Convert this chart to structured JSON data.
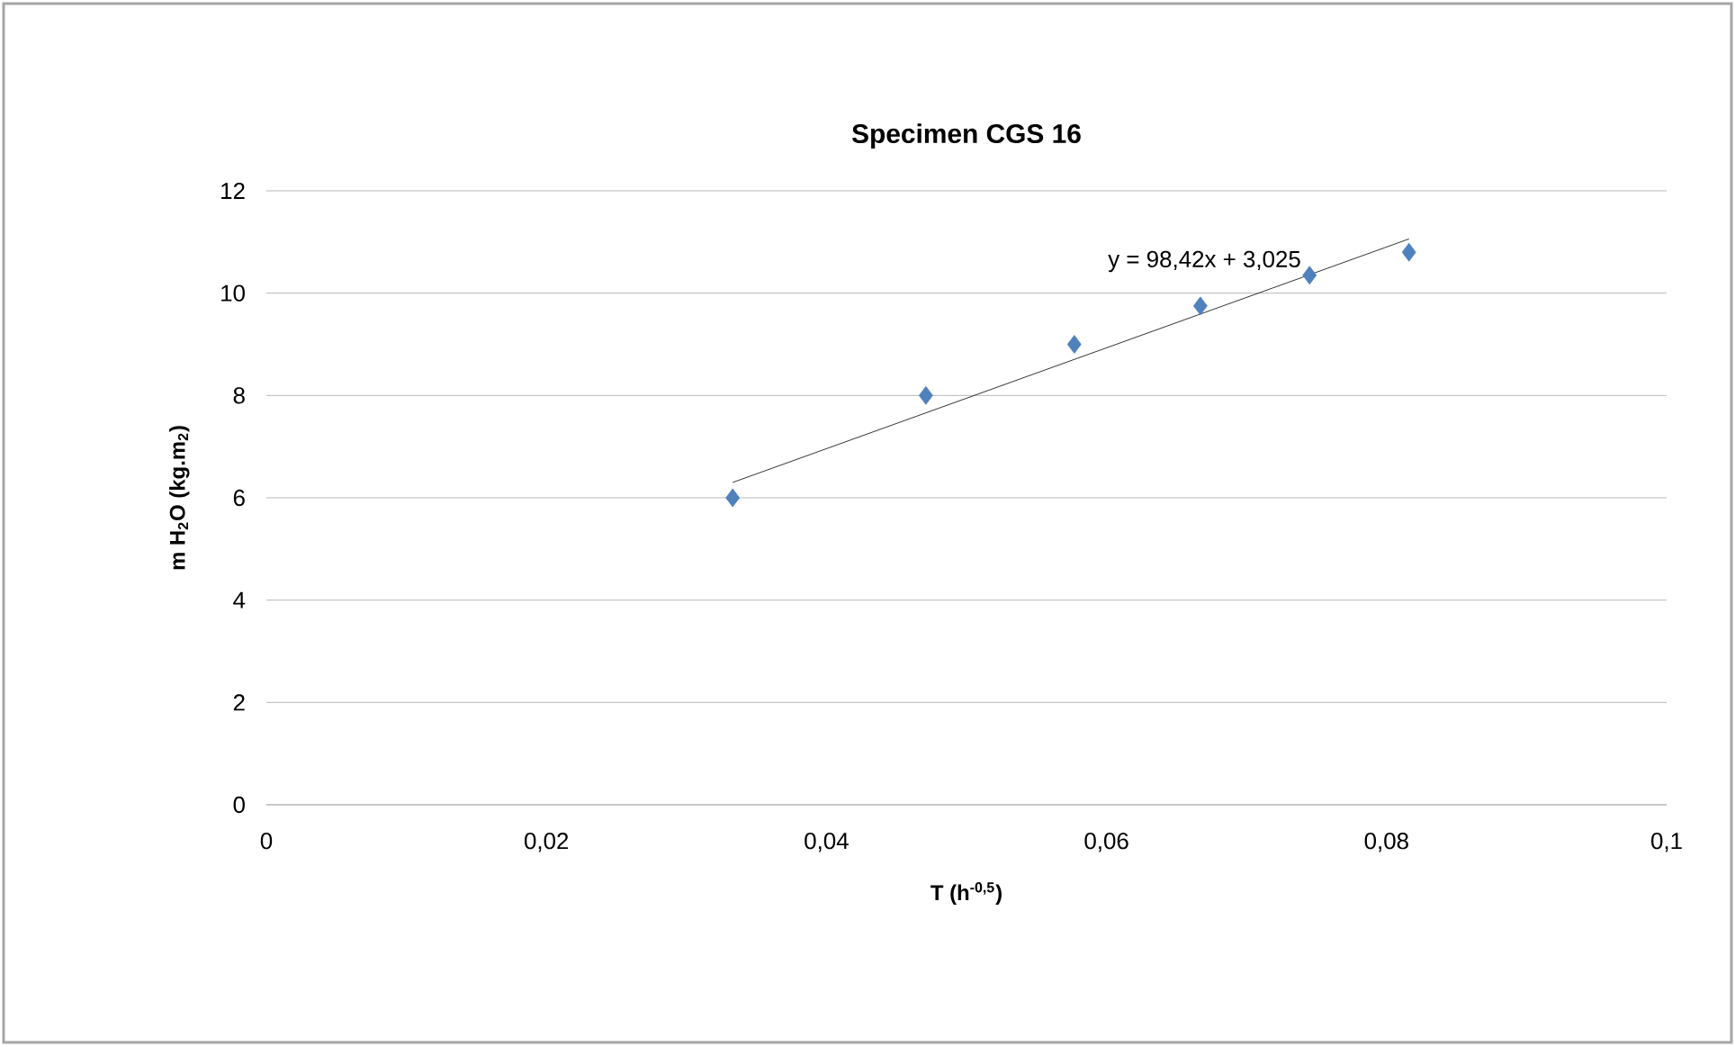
{
  "chart_data": {
    "type": "scatter",
    "title": "Specimen CGS 16",
    "xlabel": "T (h$^{-0,5}$)",
    "ylabel": "m H$_{2}$O (kg.m$_{2}$)",
    "series": [
      {
        "color": "#4f81bd",
        "x": [
          0.0333,
          0.0471,
          0.0577,
          0.0667,
          0.0745,
          0.0816
        ],
        "values": [
          6.0,
          8.0,
          9.0,
          9.75,
          10.35,
          10.8
        ]
      },
      {
        "type": "line",
        "color": "#000000",
        "marker": "none",
        "x": [
          0.0333,
          0.0816
        ],
        "values": [
          6.3,
          11.06
        ]
      }
    ],
    "annotations": [
      "y = 98,42x + 3,025"
    ],
    "xlim": [
      0,
      0.1
    ],
    "ylim": [
      0,
      12
    ],
    "xticks": [
      0,
      {
        "value": 0.02,
        "label": "0,02"
      },
      {
        "value": 0.04,
        "label": "0,04"
      },
      {
        "value": 0.06,
        "label": "0,06"
      },
      {
        "value": 0.08,
        "label": "0,08"
      },
      {
        "value": 0.1,
        "label": "0,1"
      }
    ],
    "yticks": [
      0,
      2,
      4,
      6,
      8,
      10,
      12
    ],
    "grid": "y",
    "marker": "diamond"
  }
}
